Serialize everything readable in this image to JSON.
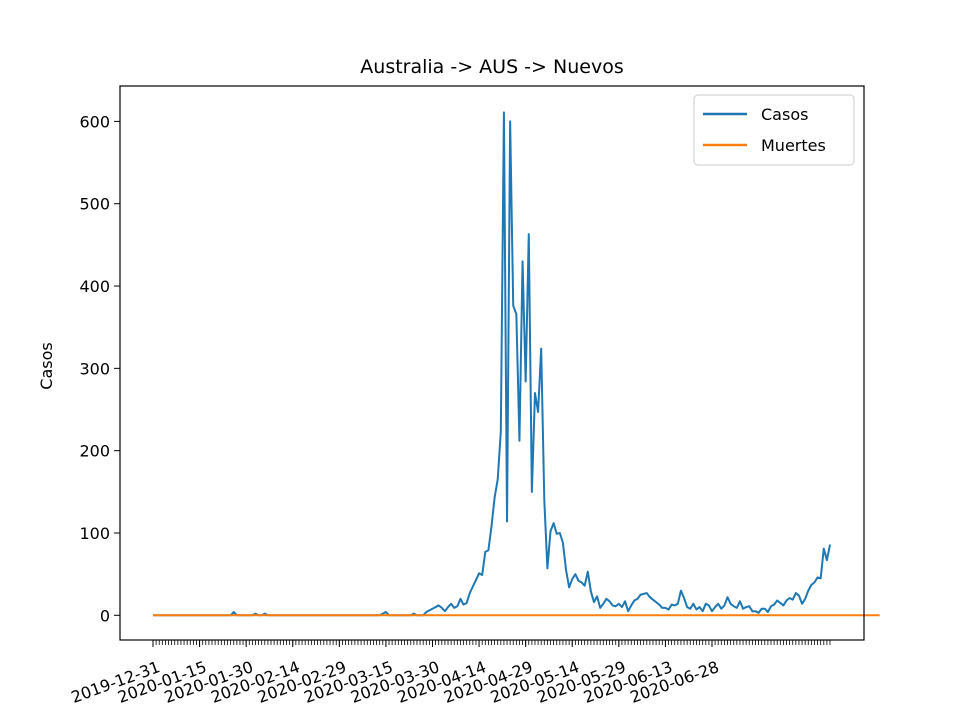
{
  "chart_data": {
    "type": "line",
    "title": "Australia -> AUS -> Nuevos",
    "xlabel": "",
    "ylabel": "Casos",
    "x_start": "2019-12-31",
    "x_tick_labels": [
      "2019-12-31",
      "2020-01-15",
      "2020-01-30",
      "2020-02-14",
      "2020-02-29",
      "2020-03-15",
      "2020-03-30",
      "2020-04-14",
      "2020-04-29",
      "2020-05-14",
      "2020-05-29",
      "2020-06-13",
      "2020-06-28"
    ],
    "y_ticks": [
      0,
      100,
      200,
      300,
      400,
      500,
      600
    ],
    "ylim": [
      -30,
      643
    ],
    "legend_position": "top-right",
    "grid": false,
    "series": [
      {
        "name": "Casos",
        "color": "#1f77b4",
        "values": [
          0,
          0,
          0,
          0,
          0,
          0,
          0,
          0,
          0,
          0,
          0,
          0,
          0,
          0,
          0,
          0,
          0,
          0,
          0,
          0,
          0,
          0,
          0,
          0,
          0,
          0,
          4,
          0,
          0,
          0,
          0,
          0,
          0,
          2,
          0,
          0,
          2,
          0,
          0,
          0,
          0,
          0,
          0,
          0,
          0,
          0,
          0,
          0,
          0,
          0,
          0,
          0,
          0,
          0,
          0,
          0,
          0,
          0,
          0,
          0,
          0,
          0,
          0,
          0,
          0,
          0,
          0,
          0,
          0,
          0,
          0,
          0,
          0,
          0,
          2,
          4,
          0,
          0,
          0,
          0,
          0,
          0,
          0,
          0,
          2,
          0,
          0,
          0,
          4,
          6,
          8,
          10,
          12,
          9,
          5,
          10,
          14,
          9,
          11,
          20,
          13,
          15,
          27,
          35,
          43,
          51,
          49,
          77,
          79,
          108,
          143,
          165,
          223,
          611,
          114,
          600,
          376,
          366,
          212,
          430,
          284,
          463,
          150,
          270,
          247,
          324,
          140,
          57,
          102,
          112,
          99,
          100,
          88,
          55,
          34,
          44,
          50,
          42,
          40,
          36,
          53,
          29,
          16,
          23,
          9,
          14,
          20,
          17,
          12,
          11,
          14,
          10,
          17,
          5,
          12,
          18,
          20,
          25,
          26,
          27,
          22,
          19,
          16,
          13,
          9,
          9,
          7,
          13,
          12,
          14,
          30,
          21,
          10,
          8,
          14,
          7,
          10,
          5,
          14,
          12,
          5,
          10,
          14,
          8,
          12,
          22,
          14,
          11,
          9,
          17,
          8,
          10,
          11,
          5,
          5,
          3,
          8,
          8,
          4,
          11,
          13,
          18,
          15,
          12,
          18,
          21,
          19,
          27,
          24,
          14,
          20,
          30,
          37,
          40,
          46,
          45,
          81,
          67,
          86
        ]
      },
      {
        "name": "Muertes",
        "color": "#ff7f0e",
        "values": [
          0,
          0,
          0,
          0,
          0,
          0,
          0,
          0,
          0,
          0,
          0,
          0,
          0,
          0,
          0,
          0,
          0,
          0,
          0,
          0,
          0,
          0,
          0,
          0,
          0,
          0,
          0,
          0,
          0,
          0,
          0,
          0,
          0,
          0,
          0,
          0,
          0,
          0,
          0,
          0,
          0,
          0,
          0,
          0,
          0,
          0,
          0,
          0,
          0,
          0,
          0,
          0,
          0,
          0,
          0,
          0,
          0,
          0,
          0,
          0,
          0,
          0,
          0,
          0,
          0,
          0,
          0,
          0,
          0,
          0,
          0,
          0,
          0,
          0,
          0,
          0,
          0,
          0,
          0,
          0,
          0,
          0,
          0,
          0,
          0,
          0,
          0,
          0,
          0,
          0,
          0,
          0,
          0,
          0,
          0,
          0,
          0,
          0,
          0,
          0,
          0,
          0,
          0,
          0,
          0,
          0,
          0,
          0,
          0,
          0,
          0,
          0,
          0,
          0,
          0,
          0,
          0,
          0,
          0,
          0,
          0,
          0,
          0,
          0,
          0,
          0,
          0,
          0,
          0,
          0,
          0,
          0,
          0,
          0,
          0,
          0,
          0,
          0,
          0,
          0,
          0,
          0,
          0,
          0,
          0,
          0,
          0,
          0,
          0,
          0,
          0,
          0,
          0,
          0,
          0,
          0,
          0,
          0,
          0,
          0,
          0,
          0,
          0,
          0,
          0,
          0,
          0,
          0,
          0,
          0,
          0,
          0,
          0,
          0,
          0,
          0,
          0,
          0,
          0,
          0,
          0,
          0,
          0,
          0,
          0,
          0,
          0,
          0,
          0,
          0,
          0,
          0,
          0,
          0,
          0,
          0,
          0,
          0,
          0,
          0,
          0,
          0,
          0,
          0,
          0,
          0,
          0,
          0,
          0,
          0,
          0,
          0,
          0,
          0,
          0,
          0,
          0,
          0,
          0,
          0,
          0,
          0,
          0,
          0,
          0,
          0,
          0,
          0,
          0,
          0,
          0,
          0,
          0,
          0,
          0
        ]
      }
    ]
  }
}
